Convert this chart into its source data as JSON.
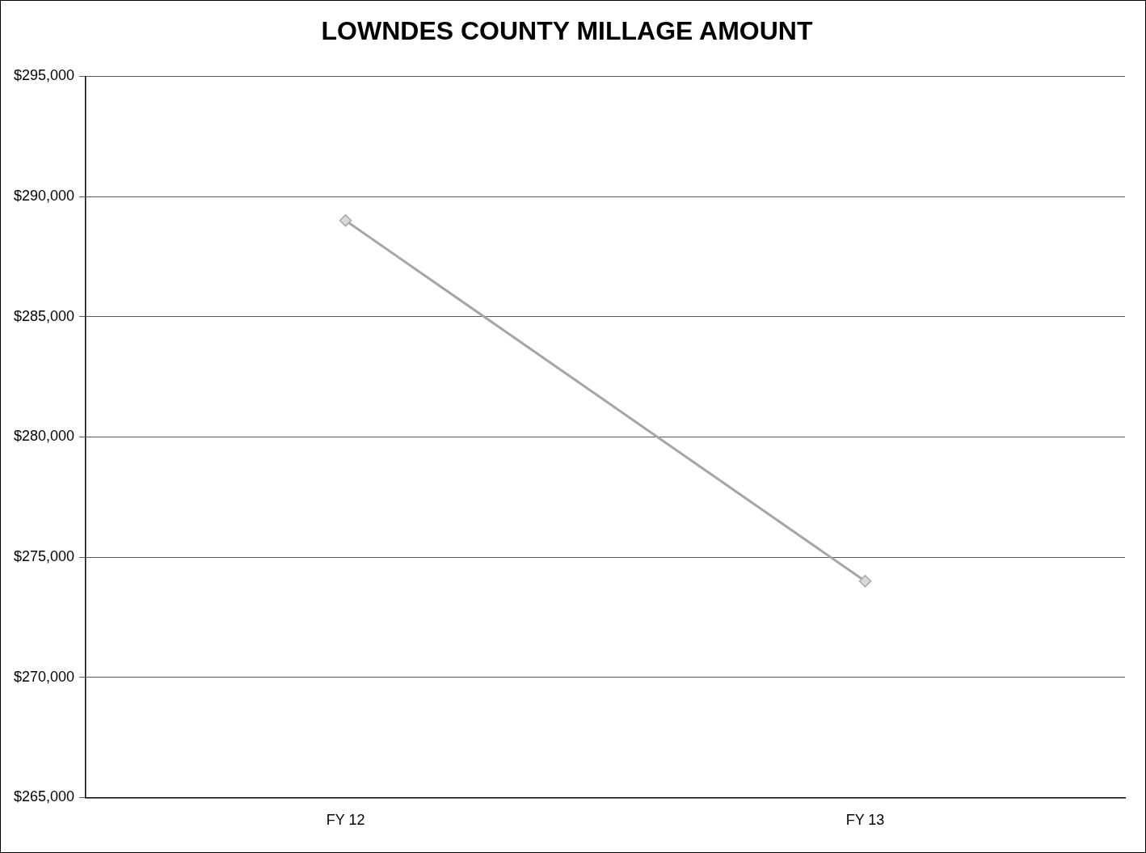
{
  "chart_data": {
    "type": "line",
    "title": "LOWNDES COUNTY MILLAGE AMOUNT",
    "categories": [
      "FY 12",
      "FY 13"
    ],
    "series": [
      {
        "color": "#a6a6a6",
        "values": [
          289000,
          274000
        ]
      }
    ],
    "ylim": [
      265000,
      295000
    ],
    "yticks": [
      {
        "value": 265000,
        "label": "$265,000"
      },
      {
        "value": 270000,
        "label": "$270,000"
      },
      {
        "value": 275000,
        "label": "$275,000"
      },
      {
        "value": 280000,
        "label": "$280,000"
      },
      {
        "value": 285000,
        "label": "$285,000"
      },
      {
        "value": 290000,
        "label": "$290,000"
      },
      {
        "value": 295000,
        "label": "$295,000"
      }
    ],
    "grid": "y",
    "marker": "diamond",
    "legend": false
  }
}
